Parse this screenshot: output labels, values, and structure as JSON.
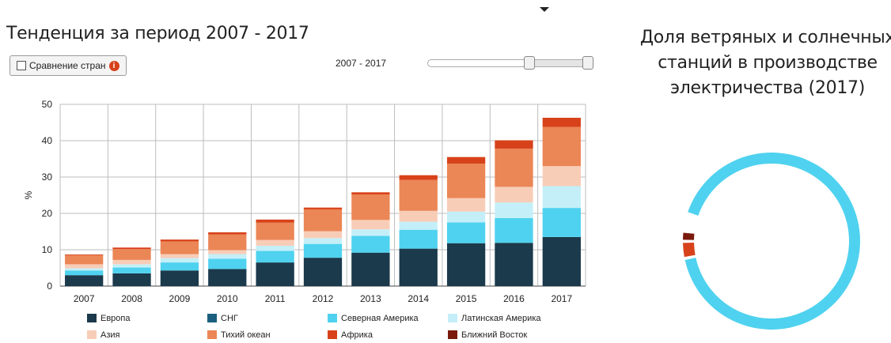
{
  "header": {
    "title": "Тенденция за период 2007 - 2017",
    "compare_label": "Сравнение стран",
    "info_icon": "i",
    "range_label": "2007 - 2017"
  },
  "donut": {
    "title_line1": "Доля ветряных и солнечных",
    "title_line2": "станций в производстве",
    "title_line3": "электричества (2017)"
  },
  "chart_data": {
    "type": "bar",
    "stacked": true,
    "categories": [
      "2007",
      "2008",
      "2009",
      "2010",
      "2011",
      "2012",
      "2013",
      "2014",
      "2015",
      "2016",
      "2017"
    ],
    "ylabel": "%",
    "xlabel": "",
    "ylim": [
      0,
      50
    ],
    "yticks": [
      "0",
      "10",
      "20",
      "30",
      "40",
      "50"
    ],
    "grid": true,
    "legend_position": "bottom",
    "series": [
      {
        "name": "Европа",
        "color": "#1b3a4b",
        "values": [
          3.0,
          3.5,
          4.3,
          4.7,
          6.5,
          7.8,
          9.2,
          10.3,
          11.8,
          11.9,
          13.5
        ]
      },
      {
        "name": "СНГ",
        "color": "#1b5f7f",
        "values": [
          0,
          0,
          0,
          0,
          0,
          0,
          0,
          0,
          0,
          0,
          0
        ]
      },
      {
        "name": "Северная Америка",
        "color": "#4fd2ef",
        "values": [
          1.3,
          1.6,
          2.2,
          2.8,
          3.2,
          3.8,
          4.6,
          5.2,
          5.7,
          6.8,
          8.0
        ]
      },
      {
        "name": "Латинская Америка",
        "color": "#c4eff8",
        "values": [
          0.6,
          0.9,
          1.2,
          1.3,
          1.4,
          1.6,
          1.8,
          2.2,
          3.0,
          4.3,
          6.0
        ]
      },
      {
        "name": "Азия",
        "color": "#f8cdb7",
        "values": [
          1.1,
          1.2,
          1.1,
          1.1,
          1.6,
          1.9,
          2.6,
          3.0,
          3.7,
          4.3,
          5.5
        ]
      },
      {
        "name": "Тихий океан",
        "color": "#eb8656",
        "values": [
          2.5,
          3.0,
          3.5,
          4.3,
          4.8,
          6.0,
          7.0,
          8.5,
          9.5,
          10.5,
          10.8
        ]
      },
      {
        "name": "Африка",
        "color": "#d8421a",
        "values": [
          0.2,
          0.4,
          0.5,
          0.6,
          0.8,
          0.5,
          0.6,
          1.3,
          1.8,
          2.3,
          2.5
        ]
      },
      {
        "name": "Ближний Восток",
        "color": "#7a1a0c",
        "values": [
          0,
          0,
          0,
          0,
          0,
          0,
          0,
          0,
          0,
          0,
          0
        ]
      }
    ]
  },
  "donut_data": {
    "type": "pie",
    "segments": [
      {
        "color": "#4fd2ef",
        "value": 0.82
      },
      {
        "color": "#d8421a",
        "value": 0.04
      },
      {
        "color": "#7a1a0c",
        "value": 0.02
      }
    ]
  }
}
